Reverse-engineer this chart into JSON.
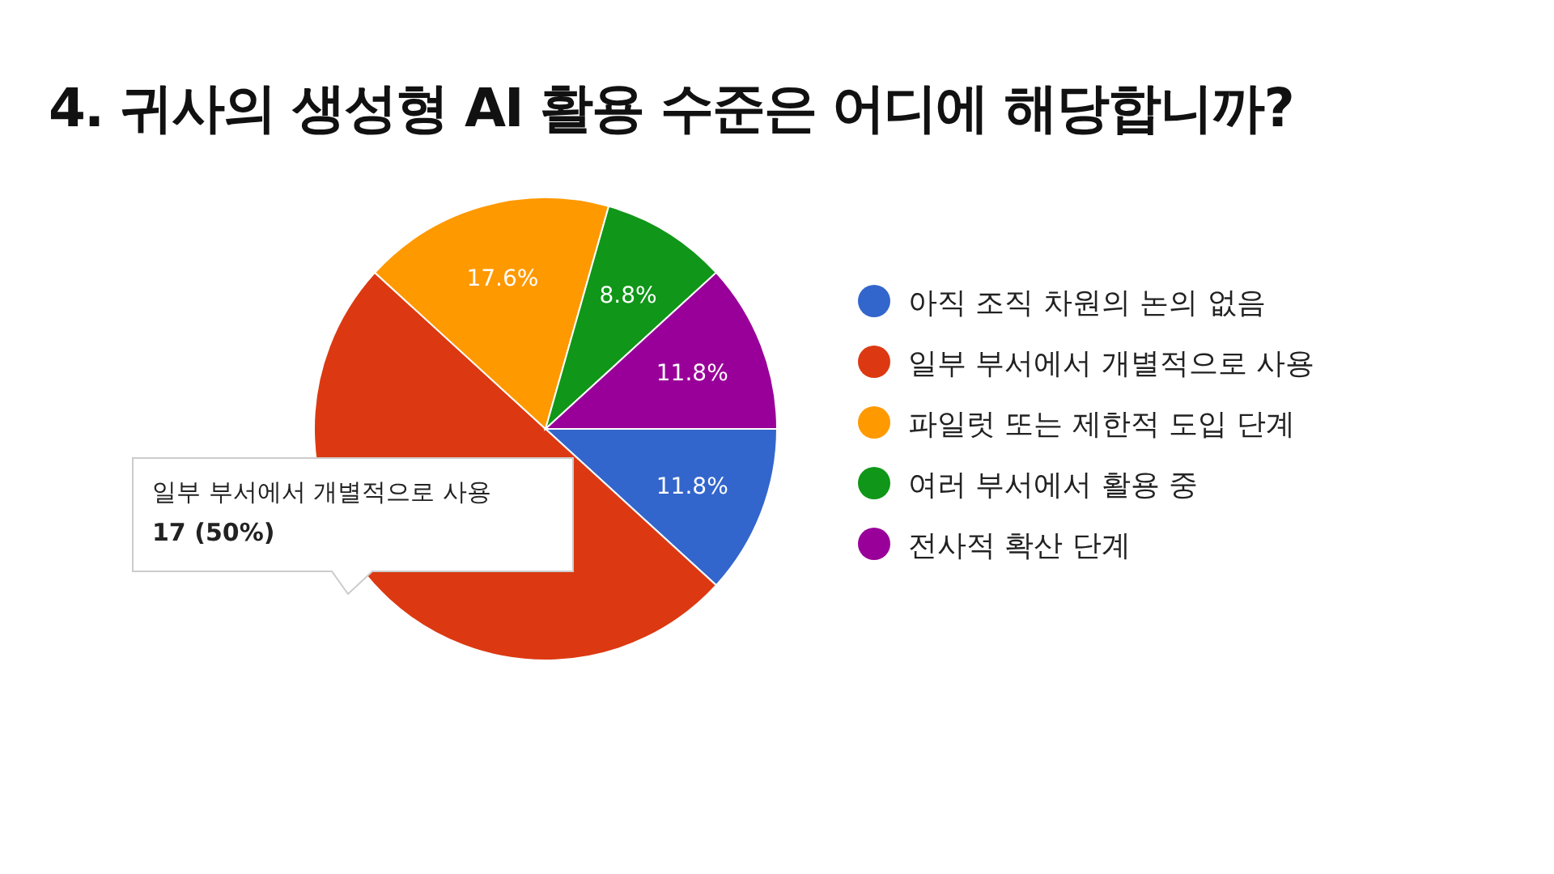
{
  "chart_data": {
    "type": "pie",
    "title": "4. 귀사의 생성형 AI 활용 수준은 어디에 해당합니까?",
    "categories": [
      "아직 조직 차원의 논의 없음",
      "일부 부서에서 개별적으로 사용",
      "파일럿 또는 제한적 도입 단계",
      "여러 부서에서 활용 중",
      "전사적 확산 단계"
    ],
    "values": [
      11.8,
      50,
      17.6,
      8.8,
      11.8
    ],
    "colors": [
      "#3366cc",
      "#dc3912",
      "#ff9900",
      "#109618",
      "#990099"
    ],
    "value_labels": [
      "11.8%",
      null,
      "17.6%",
      "8.8%",
      "11.8%"
    ],
    "annotations": [
      "일부 부서에서 개별적으로 사용",
      "17 (50%)"
    ],
    "legend": "right"
  }
}
